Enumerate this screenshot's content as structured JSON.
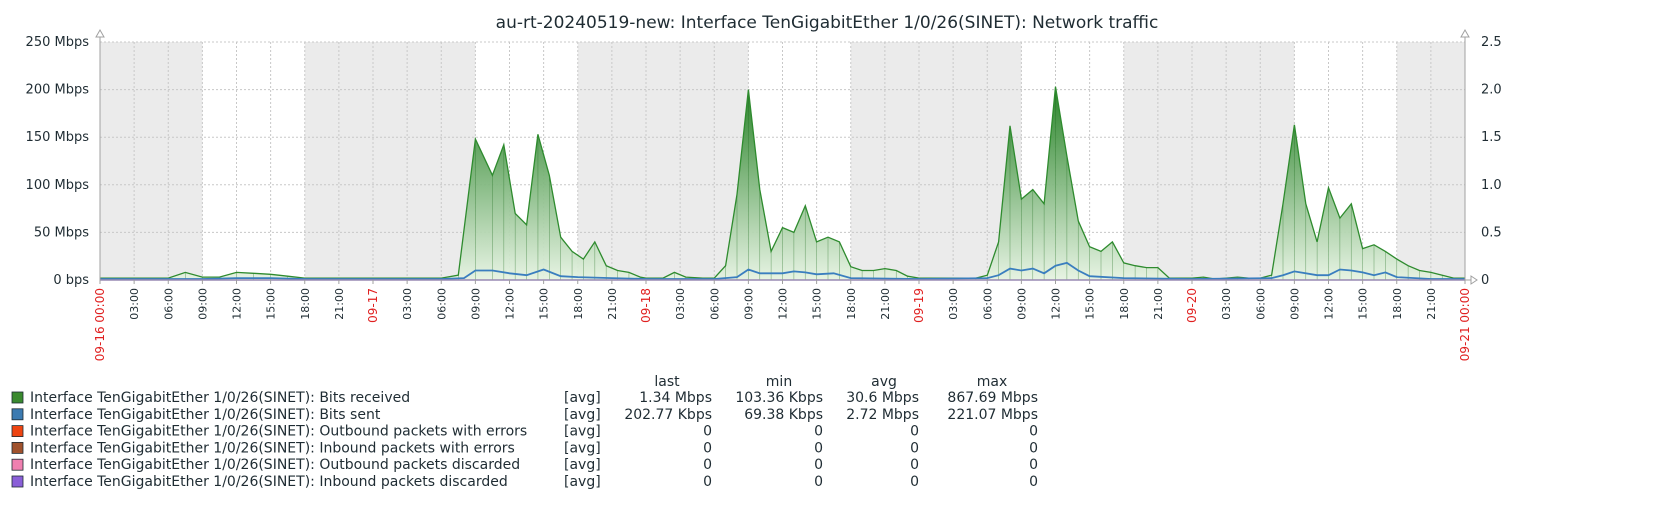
{
  "chart_data": {
    "type": "area",
    "title": "au-rt-20240519-new: Interface TenGigabitEther 1/0/26(SINET): Network traffic",
    "y_left": {
      "unit": "Mbps",
      "ticks": [
        "0 bps",
        "50 Mbps",
        "100 Mbps",
        "150 Mbps",
        "200 Mbps",
        "250 Mbps"
      ],
      "ylim": [
        0,
        250
      ]
    },
    "y_right": {
      "ticks": [
        "0",
        "0.5",
        "1.0",
        "1.5",
        "2.0",
        "2.5"
      ],
      "ylim": [
        0,
        2.5
      ]
    },
    "x_range_hours": [
      0,
      120
    ],
    "x_ticks": [
      {
        "h": 0,
        "label": "09-16 00:00",
        "major": true
      },
      {
        "h": 3,
        "label": "03:00"
      },
      {
        "h": 6,
        "label": "06:00"
      },
      {
        "h": 9,
        "label": "09:00"
      },
      {
        "h": 12,
        "label": "12:00"
      },
      {
        "h": 15,
        "label": "15:00"
      },
      {
        "h": 18,
        "label": "18:00"
      },
      {
        "h": 21,
        "label": "21:00"
      },
      {
        "h": 24,
        "label": "09-17",
        "major": true
      },
      {
        "h": 27,
        "label": "03:00"
      },
      {
        "h": 30,
        "label": "06:00"
      },
      {
        "h": 33,
        "label": "09:00"
      },
      {
        "h": 36,
        "label": "12:00"
      },
      {
        "h": 39,
        "label": "15:00"
      },
      {
        "h": 42,
        "label": "18:00"
      },
      {
        "h": 45,
        "label": "21:00"
      },
      {
        "h": 48,
        "label": "09-18",
        "major": true
      },
      {
        "h": 51,
        "label": "03:00"
      },
      {
        "h": 54,
        "label": "06:00"
      },
      {
        "h": 57,
        "label": "09:00"
      },
      {
        "h": 60,
        "label": "12:00"
      },
      {
        "h": 63,
        "label": "15:00"
      },
      {
        "h": 66,
        "label": "18:00"
      },
      {
        "h": 69,
        "label": "21:00"
      },
      {
        "h": 72,
        "label": "09-19",
        "major": true
      },
      {
        "h": 75,
        "label": "03:00"
      },
      {
        "h": 78,
        "label": "06:00"
      },
      {
        "h": 81,
        "label": "09:00"
      },
      {
        "h": 84,
        "label": "12:00"
      },
      {
        "h": 87,
        "label": "15:00"
      },
      {
        "h": 90,
        "label": "18:00"
      },
      {
        "h": 93,
        "label": "21:00"
      },
      {
        "h": 96,
        "label": "09-20",
        "major": true
      },
      {
        "h": 99,
        "label": "03:00"
      },
      {
        "h": 102,
        "label": "06:00"
      },
      {
        "h": 105,
        "label": "09:00"
      },
      {
        "h": 108,
        "label": "12:00"
      },
      {
        "h": 111,
        "label": "15:00"
      },
      {
        "h": 114,
        "label": "18:00"
      },
      {
        "h": 117,
        "label": "21:00"
      },
      {
        "h": 120,
        "label": "09-21 00:00",
        "major": true
      }
    ],
    "shaded_hour_ranges": [
      [
        0,
        9
      ],
      [
        18,
        33
      ],
      [
        42,
        57
      ],
      [
        66,
        81
      ],
      [
        90,
        105
      ],
      [
        114,
        120
      ]
    ],
    "series": [
      {
        "name": "Interface TenGigabitEther 1/0/26(SINET): Bits received",
        "color": "#2e8b2e",
        "points": [
          [
            0,
            2
          ],
          [
            3,
            2
          ],
          [
            6,
            2
          ],
          [
            7.5,
            8
          ],
          [
            9,
            3
          ],
          [
            10.5,
            3
          ],
          [
            12,
            8
          ],
          [
            13.5,
            7
          ],
          [
            15,
            6
          ],
          [
            16.5,
            4
          ],
          [
            18,
            2
          ],
          [
            21,
            2
          ],
          [
            24,
            2
          ],
          [
            27,
            2
          ],
          [
            30,
            2
          ],
          [
            31.5,
            5
          ],
          [
            33,
            148
          ],
          [
            34.5,
            110
          ],
          [
            35.5,
            142
          ],
          [
            36.5,
            70
          ],
          [
            37.5,
            58
          ],
          [
            38.5,
            153
          ],
          [
            39.5,
            110
          ],
          [
            40.5,
            45
          ],
          [
            41.5,
            30
          ],
          [
            42.5,
            22
          ],
          [
            43.5,
            40
          ],
          [
            44.5,
            15
          ],
          [
            45.5,
            10
          ],
          [
            46.5,
            8
          ],
          [
            47.5,
            3
          ],
          [
            48,
            2
          ],
          [
            49.5,
            2
          ],
          [
            50.5,
            8
          ],
          [
            51.5,
            3
          ],
          [
            53,
            2
          ],
          [
            54,
            2
          ],
          [
            55,
            15
          ],
          [
            56,
            90
          ],
          [
            57,
            200
          ],
          [
            58,
            95
          ],
          [
            59,
            30
          ],
          [
            60,
            55
          ],
          [
            61,
            50
          ],
          [
            62,
            78
          ],
          [
            63,
            40
          ],
          [
            64,
            45
          ],
          [
            65,
            40
          ],
          [
            66,
            14
          ],
          [
            67,
            10
          ],
          [
            68,
            10
          ],
          [
            69,
            12
          ],
          [
            70,
            10
          ],
          [
            71,
            4
          ],
          [
            72,
            2
          ],
          [
            75,
            2
          ],
          [
            77,
            2
          ],
          [
            78,
            5
          ],
          [
            79,
            40
          ],
          [
            80,
            162
          ],
          [
            81,
            85
          ],
          [
            82,
            95
          ],
          [
            83,
            80
          ],
          [
            84,
            203
          ],
          [
            85,
            130
          ],
          [
            86,
            62
          ],
          [
            87,
            35
          ],
          [
            88,
            30
          ],
          [
            89,
            40
          ],
          [
            90,
            18
          ],
          [
            91,
            15
          ],
          [
            92,
            13
          ],
          [
            93,
            13
          ],
          [
            94,
            2
          ],
          [
            96,
            2
          ],
          [
            97,
            3
          ],
          [
            98,
            1
          ],
          [
            99,
            2
          ],
          [
            100,
            3
          ],
          [
            101,
            2
          ],
          [
            102,
            2
          ],
          [
            103,
            5
          ],
          [
            104,
            80
          ],
          [
            105,
            163
          ],
          [
            106,
            80
          ],
          [
            107,
            40
          ],
          [
            108,
            97
          ],
          [
            109,
            65
          ],
          [
            110,
            80
          ],
          [
            111,
            33
          ],
          [
            112,
            37
          ],
          [
            113,
            30
          ],
          [
            114,
            22
          ],
          [
            115,
            15
          ],
          [
            116,
            10
          ],
          [
            117,
            8
          ],
          [
            118,
            5
          ],
          [
            119,
            2
          ],
          [
            120,
            2
          ]
        ]
      },
      {
        "name": "Interface TenGigabitEther 1/0/26(SINET): Bits sent",
        "color": "#3a7ebf",
        "points": [
          [
            0,
            1
          ],
          [
            9,
            1
          ],
          [
            12,
            2
          ],
          [
            15,
            2
          ],
          [
            18,
            1
          ],
          [
            30,
            1
          ],
          [
            32,
            2
          ],
          [
            33,
            10
          ],
          [
            34.5,
            10
          ],
          [
            36,
            7
          ],
          [
            37.5,
            5
          ],
          [
            39,
            11
          ],
          [
            40.5,
            4
          ],
          [
            42,
            3
          ],
          [
            45,
            2
          ],
          [
            48,
            1
          ],
          [
            54,
            1
          ],
          [
            56,
            3
          ],
          [
            57,
            11
          ],
          [
            58,
            7
          ],
          [
            60,
            7
          ],
          [
            61,
            9
          ],
          [
            62,
            8
          ],
          [
            63,
            6
          ],
          [
            64.5,
            7
          ],
          [
            66,
            2
          ],
          [
            72,
            1
          ],
          [
            78,
            2
          ],
          [
            79,
            5
          ],
          [
            80,
            12
          ],
          [
            81,
            10
          ],
          [
            82,
            12
          ],
          [
            83,
            7
          ],
          [
            84,
            15
          ],
          [
            85,
            18
          ],
          [
            86,
            10
          ],
          [
            87,
            4
          ],
          [
            90,
            2
          ],
          [
            96,
            1
          ],
          [
            103,
            2
          ],
          [
            104,
            5
          ],
          [
            105,
            9
          ],
          [
            107,
            5
          ],
          [
            108,
            5
          ],
          [
            109,
            11
          ],
          [
            110,
            10
          ],
          [
            111,
            8
          ],
          [
            112,
            5
          ],
          [
            113,
            8
          ],
          [
            114,
            3
          ],
          [
            117,
            1
          ],
          [
            120,
            1
          ]
        ]
      }
    ],
    "legend": {
      "columns": [
        "last",
        "min",
        "avg",
        "max"
      ],
      "rows": [
        {
          "name": "Interface TenGigabitEther 1/0/26(SINET): Bits received",
          "func": "[avg]",
          "color": "#3a8a2f",
          "last": "1.34 Mbps",
          "min": "103.36 Kbps",
          "avg": "30.6 Mbps",
          "max": "867.69 Mbps"
        },
        {
          "name": "Interface TenGigabitEther 1/0/26(SINET): Bits sent",
          "func": "[avg]",
          "color": "#3c7bb1",
          "last": "202.77 Kbps",
          "min": "69.38 Kbps",
          "avg": "2.72 Mbps",
          "max": "221.07 Mbps"
        },
        {
          "name": "Interface TenGigabitEther 1/0/26(SINET): Outbound packets with errors",
          "func": "[avg]",
          "color": "#ee4411",
          "last": "0",
          "min": "0",
          "avg": "0",
          "max": "0"
        },
        {
          "name": "Interface TenGigabitEther 1/0/26(SINET): Inbound packets with errors",
          "func": "[avg]",
          "color": "#a0522d",
          "last": "0",
          "min": "0",
          "avg": "0",
          "max": "0"
        },
        {
          "name": "Interface TenGigabitEther 1/0/26(SINET): Outbound packets discarded",
          "func": "[avg]",
          "color": "#f080b0",
          "last": "0",
          "min": "0",
          "avg": "0",
          "max": "0"
        },
        {
          "name": "Interface TenGigabitEther 1/0/26(SINET): Inbound packets discarded",
          "func": "[avg]",
          "color": "#8a5fd8",
          "last": "0",
          "min": "0",
          "avg": "0",
          "max": "0"
        }
      ]
    }
  }
}
